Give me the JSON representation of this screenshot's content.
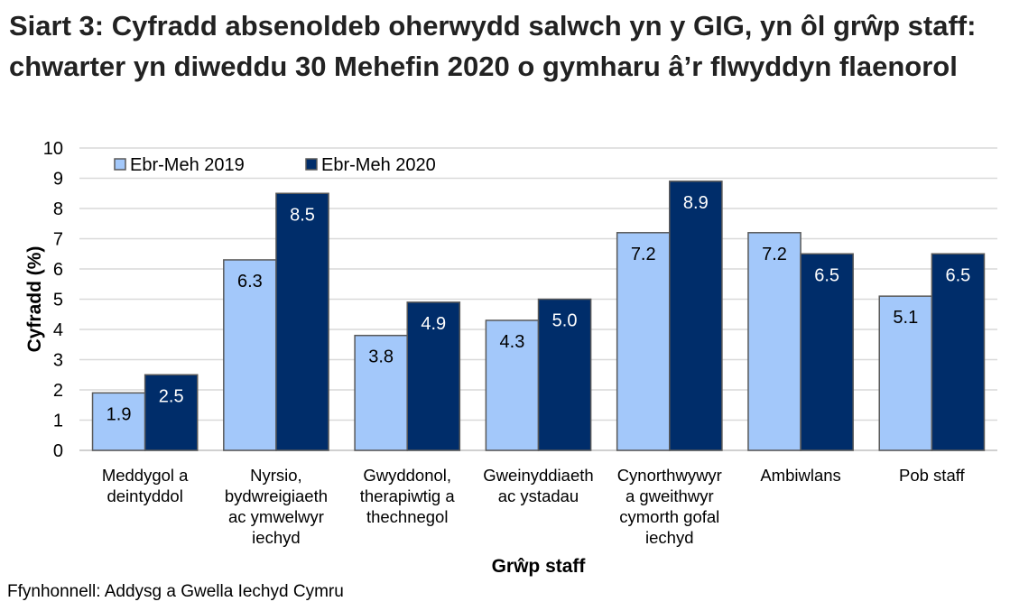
{
  "chart_data": {
    "type": "bar",
    "title": "Siart 3: Cyfradd absenoldeb oherwydd salwch yn y GIG, yn ôl grŵp staff: chwarter yn diweddu 30 Mehefin 2020 o gymharu â’r flwyddyn flaenorol",
    "xlabel": "Grŵp staff",
    "ylabel": "Cyfradd (%)",
    "ylim": [
      0,
      10
    ],
    "yticks": [
      0,
      1,
      2,
      3,
      4,
      5,
      6,
      7,
      8,
      9,
      10
    ],
    "grid": true,
    "legend_position": "top-left",
    "categories": [
      "Meddygol a\ndeintyddol",
      "Nyrsio,\nbydwreigiaeth\nac ymwelwyr\niechyd",
      "Gwyddonol,\ntherapiwtig a\nthechnegol",
      "Gweinyddiaeth\nac ystadau",
      "Cynorthwywyr\na gweithwyr\ncymorth gofal\niechyd",
      "Ambiwlans",
      "Pob staff"
    ],
    "series": [
      {
        "name": "Ebr-Meh 2019",
        "color": "#A3C8FA",
        "values": [
          1.9,
          6.3,
          3.8,
          4.3,
          7.2,
          7.2,
          5.1
        ],
        "labels": [
          "1.9",
          "6.3",
          "3.8",
          "4.3",
          "7.2",
          "7.2",
          "5.1"
        ]
      },
      {
        "name": "Ebr-Meh 2020",
        "color": "#002D6A",
        "values": [
          2.5,
          8.5,
          4.9,
          5.0,
          8.9,
          6.5,
          6.5
        ],
        "labels": [
          "2.5",
          "8.5",
          "4.9",
          "5.0",
          "8.9",
          "6.5",
          "6.5"
        ]
      }
    ],
    "source": "Ffynhonnell: Addysg a Gwella Iechyd Cymru"
  }
}
